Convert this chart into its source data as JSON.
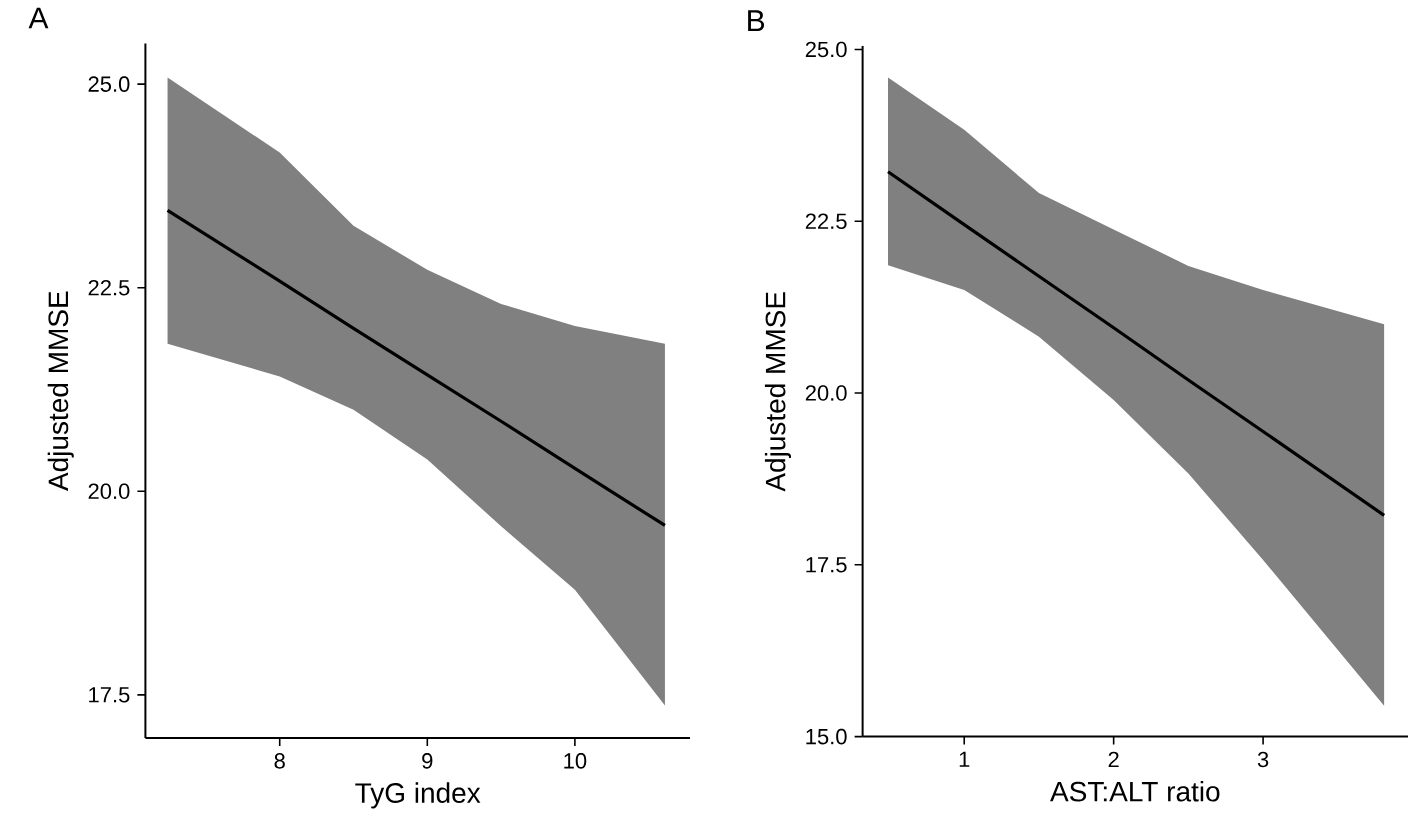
{
  "chart_data": [
    {
      "type": "line",
      "title": "A",
      "xlabel": "TyG index",
      "ylabel": "Adjusted MMSE",
      "xlim": [
        7.09,
        10.78
      ],
      "ylim": [
        16.97,
        25.5
      ],
      "xticks": [
        8,
        9,
        10
      ],
      "yticks": [
        {
          "value": 17.5,
          "label": "17.5"
        },
        {
          "value": 20,
          "label": "20.0"
        },
        {
          "value": 22.5,
          "label": "22.5"
        },
        {
          "value": 25,
          "label": "25.0"
        }
      ],
      "series": [
        {
          "color": "#000000",
          "x": [
            7.24,
            8,
            8.5,
            9,
            9.5,
            10,
            10.61
          ],
          "values": [
            23.45,
            22.58,
            22.0,
            21.43,
            20.86,
            20.28,
            19.58
          ],
          "lower": [
            21.81,
            21.41,
            21.0,
            20.39,
            19.57,
            18.79,
            17.37
          ],
          "upper": [
            25.08,
            24.16,
            23.26,
            22.72,
            22.3,
            22.03,
            21.81
          ]
        }
      ]
    },
    {
      "type": "line",
      "title": "B",
      "xlabel": "AST:ALT ratio",
      "ylabel": "Adjusted MMSE",
      "xlim": [
        0.32,
        3.97
      ],
      "ylim": [
        15,
        25.05
      ],
      "xticks": [
        1,
        2,
        3
      ],
      "yticks": [
        {
          "value": 15,
          "label": "15.0"
        },
        {
          "value": 17.5,
          "label": "17.5"
        },
        {
          "value": 20,
          "label": "20.0"
        },
        {
          "value": 22.5,
          "label": "22.5"
        },
        {
          "value": 25,
          "label": "25.0"
        }
      ],
      "series": [
        {
          "color": "#000000",
          "x": [
            0.49,
            1,
            1.5,
            2,
            2.5,
            3,
            3.81
          ],
          "values": [
            23.22,
            22.45,
            21.7,
            20.95,
            20.19,
            19.44,
            18.22
          ],
          "lower": [
            21.86,
            21.5,
            20.82,
            19.9,
            18.83,
            17.57,
            15.45
          ],
          "upper": [
            24.59,
            23.83,
            22.91,
            22.38,
            21.85,
            21.5,
            21.0
          ]
        }
      ]
    }
  ]
}
